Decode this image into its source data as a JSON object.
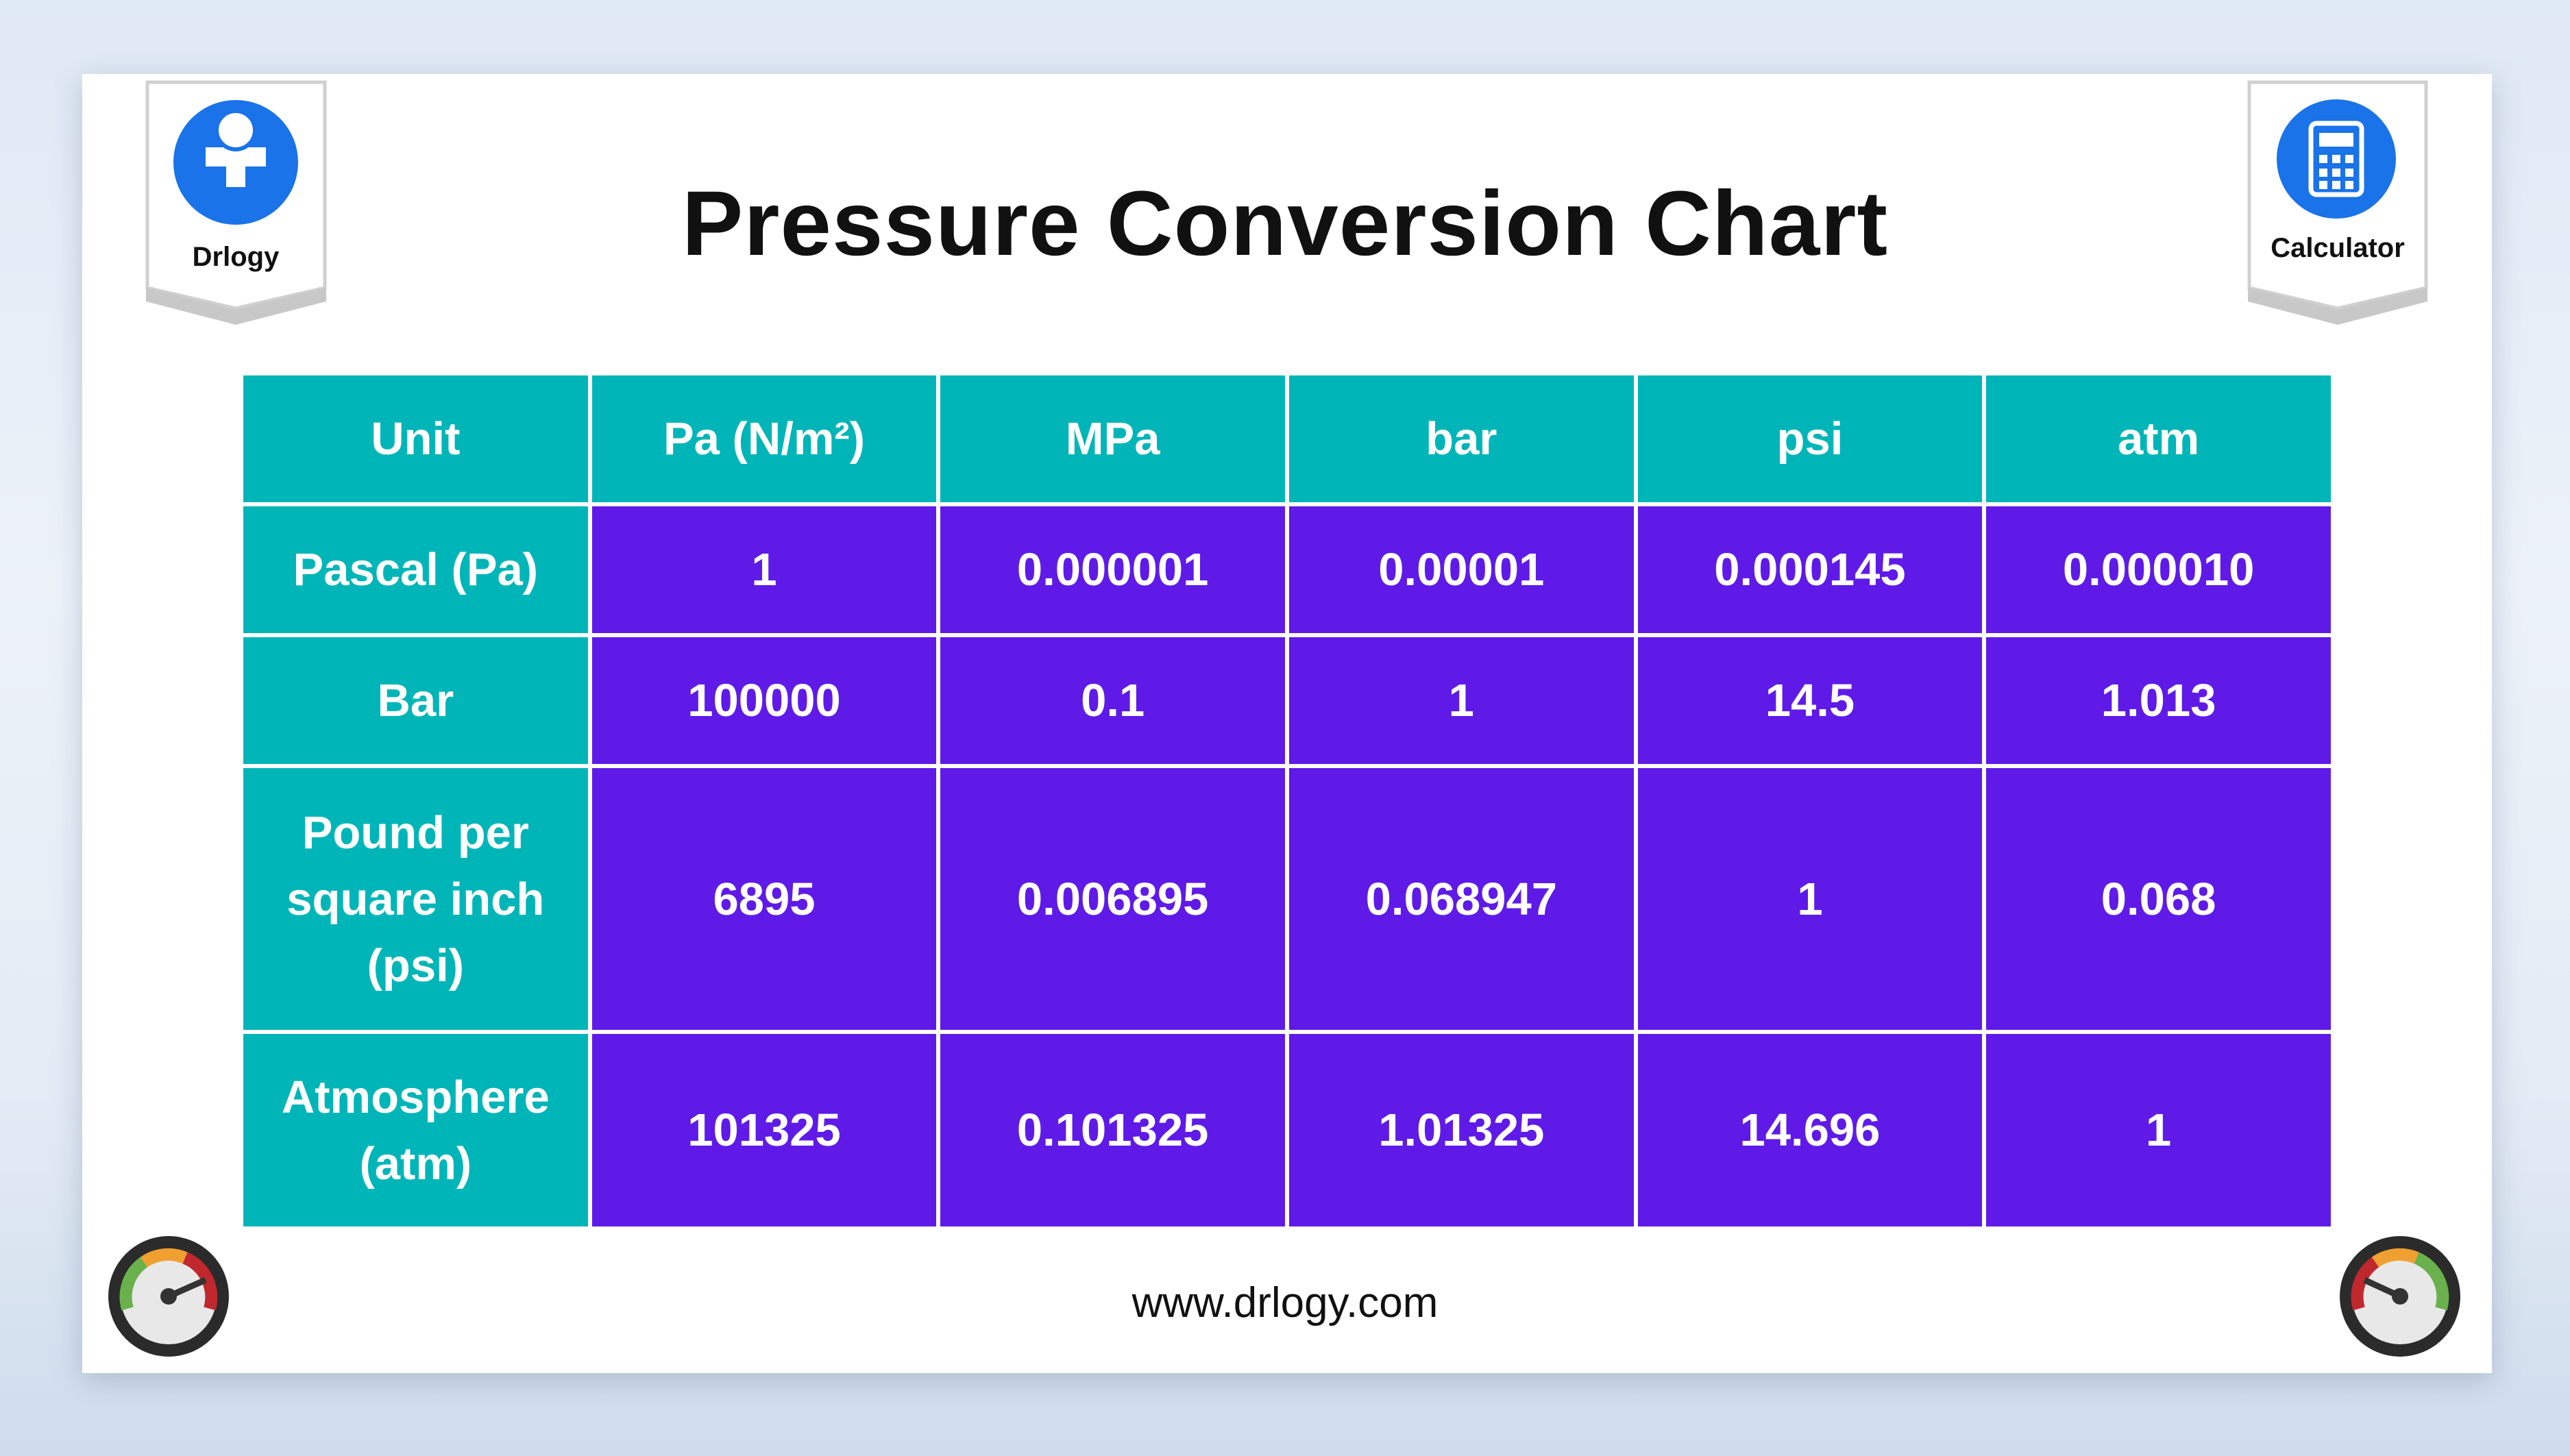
{
  "header": {
    "title": "Pressure Conversion Chart"
  },
  "logo_left": {
    "label": "Drlogy"
  },
  "logo_right": {
    "label": "Calculator"
  },
  "table": {
    "columns": [
      "Unit",
      "Pa (N/m²)",
      "MPa",
      "bar",
      "psi",
      "atm"
    ],
    "rows": [
      [
        "Pascal (Pa)",
        "1",
        "0.000001",
        "0.00001",
        "0.000145",
        "0.000010"
      ],
      [
        "Bar",
        "100000",
        "0.1",
        "1",
        "14.5",
        "1.013"
      ],
      [
        "Pound per square inch (psi)",
        "6895",
        "0.006895",
        "0.068947",
        "1",
        "0.068"
      ],
      [
        "Atmosphere (atm)",
        "101325",
        "0.101325",
        "1.01325",
        "14.696",
        "1"
      ]
    ]
  },
  "footer": {
    "url": "www.drlogy.com"
  }
}
